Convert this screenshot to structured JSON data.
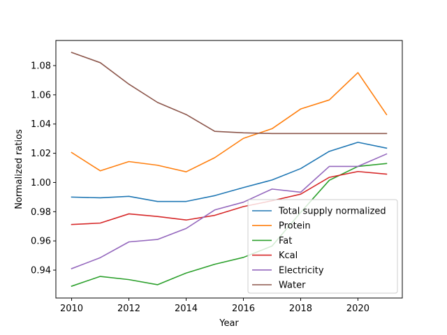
{
  "chart_data": {
    "type": "line",
    "title": "",
    "xlabel": "Year",
    "ylabel": "Normalized ratios",
    "xlim": [
      2009.45,
      2021.55
    ],
    "ylim": [
      0.9209,
      1.0972
    ],
    "xticks": [
      2010,
      2012,
      2014,
      2016,
      2018,
      2020
    ],
    "xtick_labels": [
      "2010",
      "2012",
      "2014",
      "2016",
      "2018",
      "2020"
    ],
    "yticks": [
      0.94,
      0.96,
      0.98,
      1.0,
      1.02,
      1.04,
      1.06,
      1.08
    ],
    "ytick_labels": [
      "0.94",
      "0.96",
      "0.98",
      "1.00",
      "1.02",
      "1.04",
      "1.06",
      "1.08"
    ],
    "grid": false,
    "legend_position": "lower-right",
    "x": [
      2010,
      2011,
      2012,
      2013,
      2014,
      2015,
      2016,
      2017,
      2018,
      2019,
      2020,
      2021
    ],
    "series": [
      {
        "name": "Total supply normalized",
        "color": "#1f77b4",
        "values": [
          0.99,
          0.9895,
          0.9905,
          0.987,
          0.987,
          0.991,
          0.9965,
          1.0017,
          1.0095,
          1.0213,
          1.0275,
          1.0235
        ]
      },
      {
        "name": "Protein",
        "color": "#ff7f0e",
        "values": [
          1.0205,
          1.008,
          1.0143,
          1.0118,
          1.0073,
          1.017,
          1.0302,
          1.0368,
          1.0503,
          1.0565,
          1.0752,
          1.0465
        ]
      },
      {
        "name": "Fat",
        "color": "#2ca02c",
        "values": [
          0.929,
          0.9357,
          0.9335,
          0.93,
          0.938,
          0.944,
          0.9487,
          0.9565,
          0.9795,
          1.0015,
          1.011,
          1.013
        ]
      },
      {
        "name": "Kcal",
        "color": "#d62728",
        "values": [
          0.9712,
          0.9722,
          0.9785,
          0.9767,
          0.9743,
          0.9775,
          0.9835,
          0.9875,
          0.992,
          1.0035,
          1.0075,
          1.0057
        ]
      },
      {
        "name": "Electricity",
        "color": "#9467bd",
        "values": [
          0.941,
          0.9485,
          0.9593,
          0.961,
          0.9685,
          0.9812,
          0.9865,
          0.9955,
          0.9933,
          1.011,
          1.011,
          1.0195
        ]
      },
      {
        "name": "Water",
        "color": "#8c564b",
        "values": [
          1.089,
          1.082,
          1.0673,
          1.0548,
          1.0465,
          1.035,
          1.034,
          1.0335,
          1.0335,
          1.0335,
          1.0335,
          1.0335
        ]
      }
    ]
  }
}
